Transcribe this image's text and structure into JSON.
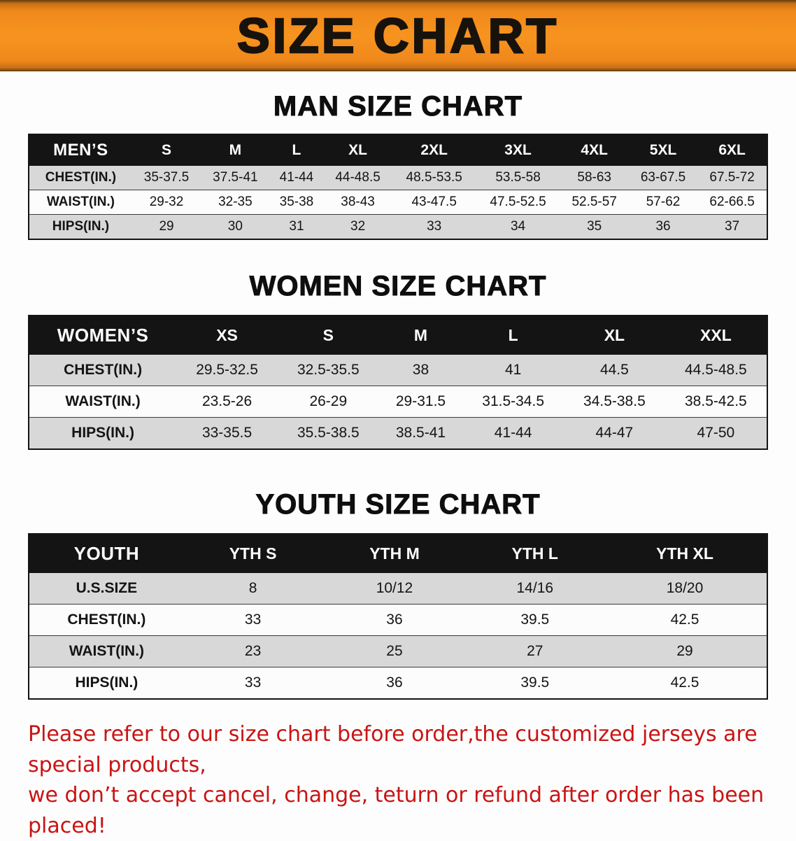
{
  "banner": {
    "title": "SIZE CHART"
  },
  "sections": [
    {
      "heading": "MAN SIZE CHART",
      "table": {
        "header": [
          "MEN’S",
          "S",
          "M",
          "L",
          "XL",
          "2XL",
          "3XL",
          "4XL",
          "5XL",
          "6XL"
        ],
        "rows": [
          [
            "CHEST(IN.)",
            "35-37.5",
            "37.5-41",
            "41-44",
            "44-48.5",
            "48.5-53.5",
            "53.5-58",
            "58-63",
            "63-67.5",
            "67.5-72"
          ],
          [
            "WAIST(IN.)",
            "29-32",
            "32-35",
            "35-38",
            "38-43",
            "43-47.5",
            "47.5-52.5",
            "52.5-57",
            "57-62",
            "62-66.5"
          ],
          [
            "HIPS(IN.)",
            "29",
            "30",
            "31",
            "32",
            "33",
            "34",
            "35",
            "36",
            "37"
          ]
        ]
      }
    },
    {
      "heading": "WOMEN SIZE CHART",
      "table": {
        "header": [
          "WOMEN’S",
          "XS",
          "S",
          "M",
          "L",
          "XL",
          "XXL"
        ],
        "rows": [
          [
            "CHEST(IN.)",
            "29.5-32.5",
            "32.5-35.5",
            "38",
            "41",
            "44.5",
            "44.5-48.5"
          ],
          [
            "WAIST(IN.)",
            "23.5-26",
            "26-29",
            "29-31.5",
            "31.5-34.5",
            "34.5-38.5",
            "38.5-42.5"
          ],
          [
            "HIPS(IN.)",
            "33-35.5",
            "35.5-38.5",
            "38.5-41",
            "41-44",
            "44-47",
            "47-50"
          ]
        ]
      }
    },
    {
      "heading": "YOUTH SIZE CHART",
      "table": {
        "header": [
          "YOUTH",
          "YTH S",
          "YTH M",
          "YTH L",
          "YTH XL"
        ],
        "rows": [
          [
            "U.S.SIZE",
            "8",
            "10/12",
            "14/16",
            "18/20"
          ],
          [
            "CHEST(IN.)",
            "33",
            "36",
            "39.5",
            "42.5"
          ],
          [
            "WAIST(IN.)",
            "23",
            "25",
            "27",
            "29"
          ],
          [
            "HIPS(IN.)",
            "33",
            "36",
            "39.5",
            "42.5"
          ]
        ]
      }
    }
  ],
  "footer": {
    "line1": "Please refer to our size chart before order,the customized jerseys are special products,",
    "line2": "we don’t accept cancel, change, teturn or refund after order has been placed!"
  },
  "colors": {
    "banner_orange": "#f7941f",
    "table_header_black": "#141414",
    "row_gray": "#d8d8d8",
    "notice_red": "#c91414"
  }
}
